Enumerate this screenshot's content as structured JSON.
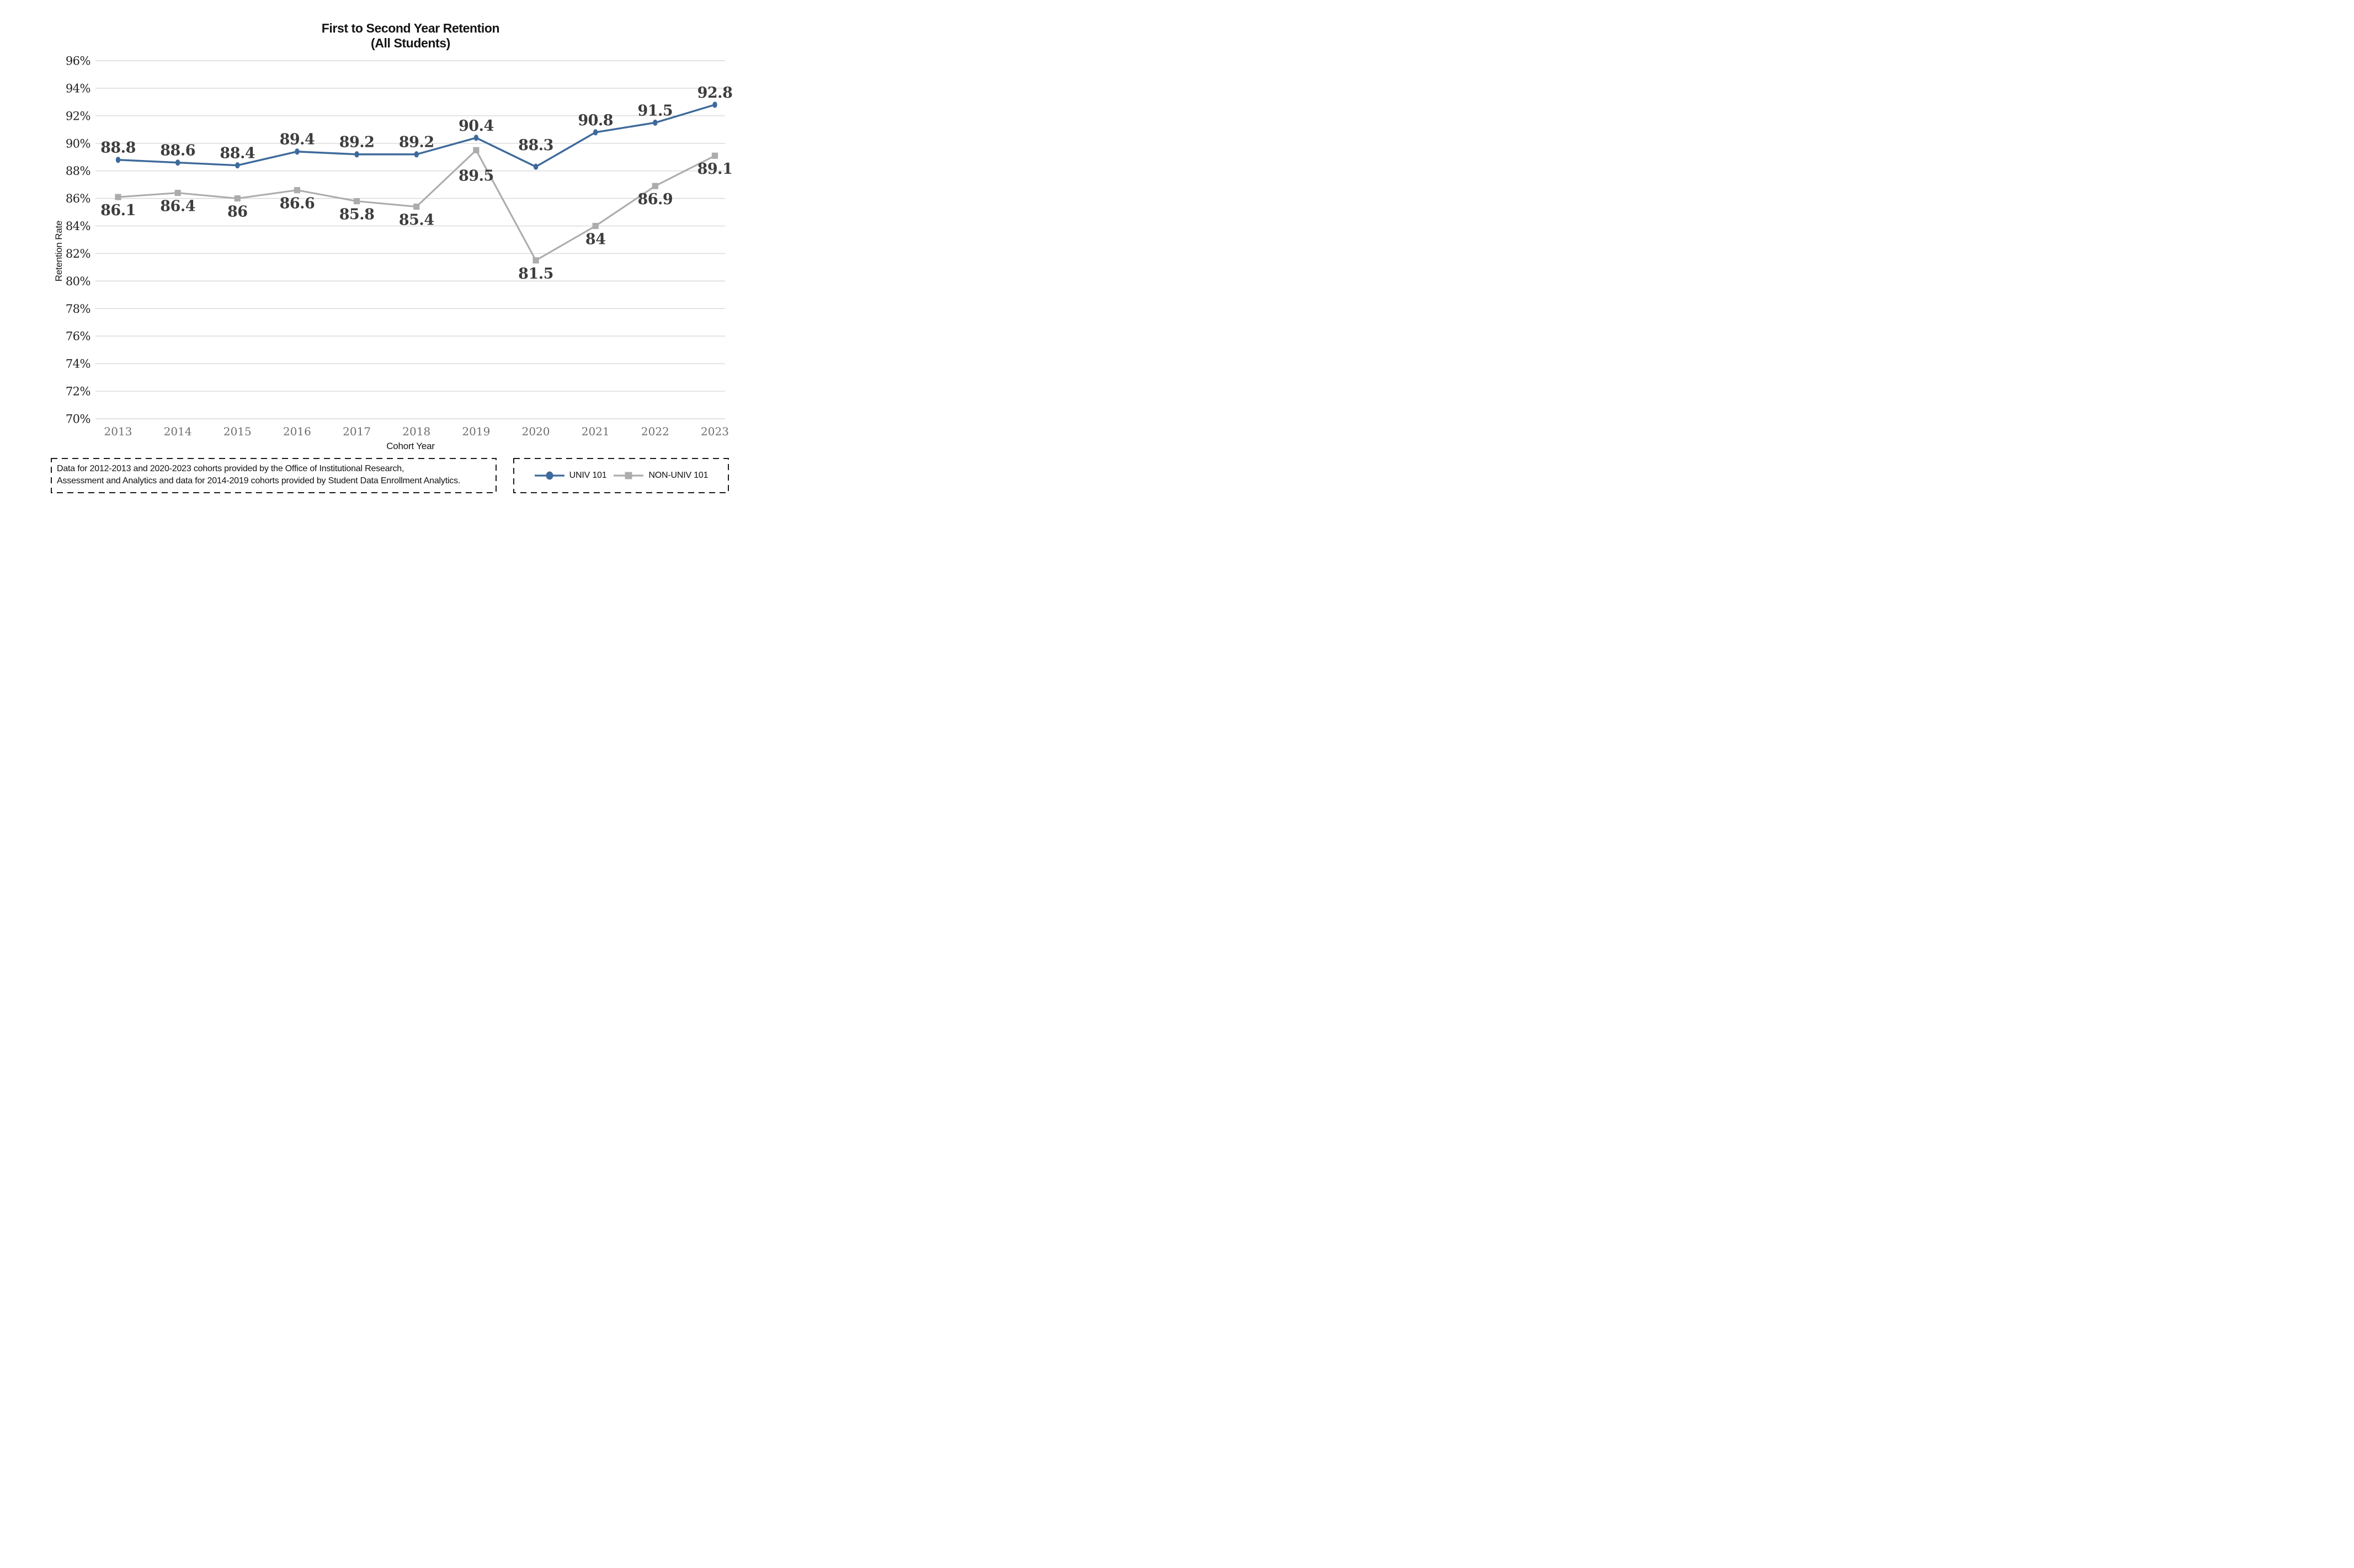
{
  "title": {
    "line1": "First to Second Year Retention",
    "line2": "(All Students)"
  },
  "chart_data": {
    "type": "line",
    "title": "First to Second Year Retention (All Students)",
    "categories": [
      "2013",
      "2014",
      "2015",
      "2016",
      "2017",
      "2018",
      "2019",
      "2020",
      "2021",
      "2022",
      "2023"
    ],
    "series": [
      {
        "name": "UNIV 101",
        "marker": "circle",
        "color": "#3E6A9B",
        "values": [
          88.8,
          88.6,
          88.4,
          89.4,
          89.2,
          89.2,
          90.4,
          88.3,
          90.8,
          91.5,
          92.8
        ]
      },
      {
        "name": "NON-UNIV 101",
        "marker": "square",
        "color": "#ACACAC",
        "values": [
          86.1,
          86.4,
          86,
          86.6,
          85.8,
          85.4,
          89.5,
          81.5,
          84,
          86.9,
          89.1
        ]
      }
    ],
    "xlabel": "Cohort Year",
    "ylabel": "Retention Rate",
    "ylim": [
      70,
      96
    ],
    "ytick_step": 2,
    "ytick_suffix": "%",
    "grid": "horizontal",
    "legend_position": "bottom-right",
    "gridline_color": "#D9D9D9",
    "data_label_color": "#3D3D3D",
    "ytick_color": "#1F1F1F",
    "xtick_color": "#6E6E6E",
    "box_border_color": "#1A1A1A"
  },
  "footnote": {
    "line1": "Data for 2012-2013 and 2020-2023 cohorts provided by the Office of Institutional Research,",
    "line2": "Assessment and Analytics and data for 2014-2019 cohorts provided by Student Data Enrollment Analytics."
  }
}
